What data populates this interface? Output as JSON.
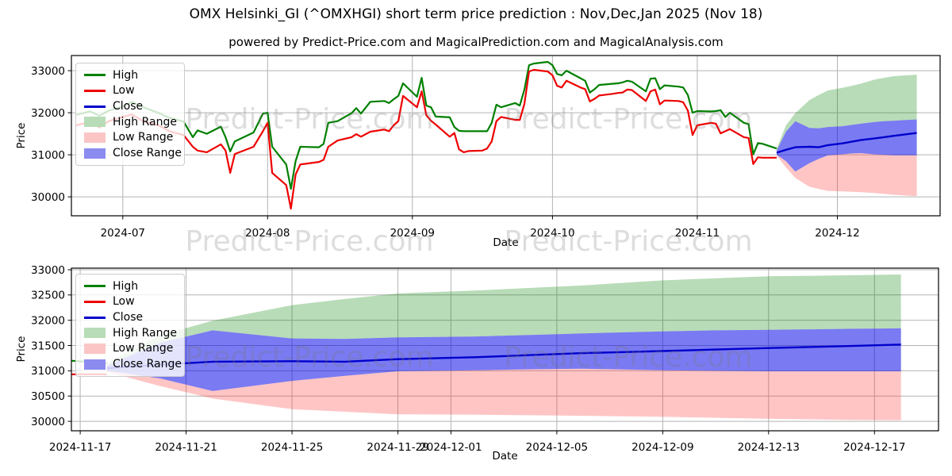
{
  "title": "OMX Helsinki_GI (^OMXHGI) short term price prediction : Nov,Dec,Jan 2025 (Nov 18)",
  "subtitle": "powered by Predict-Price.com and MagicalPrediction.com and MagicalAnalysis.com",
  "watermark": "Predict-Price.com",
  "colors": {
    "high": "#008000",
    "low": "#ee0000",
    "close": "#0000cc",
    "high_range_fill": "rgba(0,128,0,0.28)",
    "low_range_fill": "rgba(255,40,40,0.27)",
    "close_range_fill": "rgba(0,0,230,0.52)",
    "legend_high_range": "#b7dcb7",
    "legend_low_range": "#fbc5c5",
    "legend_close_range": "#8b8bf0",
    "grid": "#b3b3b3",
    "frame": "#000000",
    "watermark_text": "rgba(120,120,120,0.25)"
  },
  "legend": {
    "items": [
      {
        "label": "High",
        "swatch": "line",
        "color": "#008000"
      },
      {
        "label": "Low",
        "swatch": "line",
        "color": "#ee0000"
      },
      {
        "label": "Close",
        "swatch": "line",
        "color": "#0000cc"
      },
      {
        "label": "High Range",
        "swatch": "patch",
        "color": "#b7dcb7"
      },
      {
        "label": "Low Range",
        "swatch": "patch",
        "color": "#fbc5c5"
      },
      {
        "label": "Close Range",
        "swatch": "patch",
        "color": "#8b8bf0"
      }
    ]
  },
  "chart_data": {
    "type": "line",
    "title": "OMX Helsinki_GI (^OMXHGI) short term price prediction : Nov,Dec,Jan 2025 (Nov 18)",
    "series_legend": [
      "High",
      "Low",
      "Close",
      "High Range",
      "Low Range",
      "Close Range"
    ],
    "history": {
      "columns": [
        "date",
        "high",
        "low"
      ],
      "points": [
        [
          "2024-06-21",
          31950,
          31700
        ],
        [
          "2024-06-24",
          32030,
          31780
        ],
        [
          "2024-06-26",
          31930,
          31650
        ],
        [
          "2024-06-28",
          32050,
          31800
        ],
        [
          "2024-07-01",
          32150,
          31900
        ],
        [
          "2024-07-03",
          32260,
          31960
        ],
        [
          "2024-07-05",
          32150,
          31820
        ],
        [
          "2024-07-09",
          31980,
          31680
        ],
        [
          "2024-07-11",
          31880,
          31560
        ],
        [
          "2024-07-14",
          31790,
          31470
        ],
        [
          "2024-07-16",
          31420,
          31190
        ],
        [
          "2024-07-17",
          31580,
          31100
        ],
        [
          "2024-07-19",
          31500,
          31060
        ],
        [
          "2024-07-22",
          31670,
          31250
        ],
        [
          "2024-07-23",
          31420,
          31100
        ],
        [
          "2024-07-24",
          31080,
          30570
        ],
        [
          "2024-07-25",
          31320,
          31020
        ],
        [
          "2024-07-29",
          31530,
          31190
        ],
        [
          "2024-07-31",
          31980,
          31560
        ],
        [
          "2024-08-01",
          32000,
          31760
        ],
        [
          "2024-08-02",
          31190,
          30570
        ],
        [
          "2024-08-05",
          30770,
          30280
        ],
        [
          "2024-08-06",
          30190,
          29720
        ],
        [
          "2024-08-07",
          30850,
          30530
        ],
        [
          "2024-08-08",
          31190,
          30770
        ],
        [
          "2024-08-12",
          31180,
          30830
        ],
        [
          "2024-08-13",
          31260,
          30880
        ],
        [
          "2024-08-14",
          31760,
          31190
        ],
        [
          "2024-08-16",
          31800,
          31340
        ],
        [
          "2024-08-19",
          31990,
          31420
        ],
        [
          "2024-08-20",
          32110,
          31490
        ],
        [
          "2024-08-21",
          31980,
          31430
        ],
        [
          "2024-08-23",
          32260,
          31550
        ],
        [
          "2024-08-26",
          32280,
          31600
        ],
        [
          "2024-08-27",
          32230,
          31560
        ],
        [
          "2024-08-28",
          32320,
          31700
        ],
        [
          "2024-08-29",
          32400,
          31800
        ],
        [
          "2024-08-30",
          32700,
          32400
        ],
        [
          "2024-09-02",
          32380,
          32130
        ],
        [
          "2024-09-03",
          32830,
          32510
        ],
        [
          "2024-09-04",
          32170,
          31940
        ],
        [
          "2024-09-05",
          32130,
          31810
        ],
        [
          "2024-09-06",
          31910,
          31720
        ],
        [
          "2024-09-09",
          31890,
          31430
        ],
        [
          "2024-09-10",
          31660,
          31520
        ],
        [
          "2024-09-11",
          31570,
          31130
        ],
        [
          "2024-09-12",
          31560,
          31060
        ],
        [
          "2024-09-13",
          31560,
          31090
        ],
        [
          "2024-09-16",
          31560,
          31100
        ],
        [
          "2024-09-17",
          31560,
          31150
        ],
        [
          "2024-09-18",
          31760,
          31320
        ],
        [
          "2024-09-19",
          32190,
          31800
        ],
        [
          "2024-09-20",
          32130,
          31900
        ],
        [
          "2024-09-23",
          32230,
          31830
        ],
        [
          "2024-09-24",
          32170,
          31830
        ],
        [
          "2024-09-25",
          32550,
          32210
        ],
        [
          "2024-09-26",
          33130,
          32980
        ],
        [
          "2024-09-27",
          33170,
          33020
        ],
        [
          "2024-09-30",
          33210,
          32980
        ],
        [
          "2024-10-01",
          33130,
          32890
        ],
        [
          "2024-10-02",
          32920,
          32640
        ],
        [
          "2024-10-03",
          32890,
          32600
        ],
        [
          "2024-10-04",
          33000,
          32760
        ],
        [
          "2024-10-07",
          32820,
          32600
        ],
        [
          "2024-10-08",
          32760,
          32560
        ],
        [
          "2024-10-09",
          32480,
          32270
        ],
        [
          "2024-10-10",
          32560,
          32330
        ],
        [
          "2024-10-11",
          32660,
          32410
        ],
        [
          "2024-10-14",
          32690,
          32450
        ],
        [
          "2024-10-15",
          32700,
          32470
        ],
        [
          "2024-10-16",
          32720,
          32480
        ],
        [
          "2024-10-17",
          32760,
          32550
        ],
        [
          "2024-10-18",
          32740,
          32540
        ],
        [
          "2024-10-21",
          32510,
          32280
        ],
        [
          "2024-10-22",
          32810,
          32510
        ],
        [
          "2024-10-23",
          32820,
          32550
        ],
        [
          "2024-10-24",
          32560,
          32200
        ],
        [
          "2024-10-25",
          32650,
          32290
        ],
        [
          "2024-10-28",
          32620,
          32280
        ],
        [
          "2024-10-29",
          32600,
          32250
        ],
        [
          "2024-10-30",
          32420,
          32050
        ],
        [
          "2024-10-31",
          32000,
          31470
        ],
        [
          "2024-11-01",
          32040,
          31700
        ],
        [
          "2024-11-04",
          32030,
          31760
        ],
        [
          "2024-11-05",
          32040,
          31740
        ],
        [
          "2024-11-06",
          32060,
          31510
        ],
        [
          "2024-11-07",
          31900,
          31560
        ],
        [
          "2024-11-08",
          32000,
          31610
        ],
        [
          "2024-11-11",
          31760,
          31420
        ],
        [
          "2024-11-12",
          31730,
          31400
        ],
        [
          "2024-11-13",
          31010,
          30780
        ],
        [
          "2024-11-14",
          31280,
          30940
        ],
        [
          "2024-11-15",
          31260,
          30930
        ],
        [
          "2024-11-18",
          31150,
          30930
        ]
      ]
    },
    "forecast": {
      "dates": [
        "2024-11-18",
        "2024-11-20",
        "2024-11-22",
        "2024-11-25",
        "2024-11-27",
        "2024-11-29",
        "2024-12-02",
        "2024-12-04",
        "2024-12-06",
        "2024-12-09",
        "2024-12-11",
        "2024-12-13",
        "2024-12-16",
        "2024-12-18"
      ],
      "close": [
        31050,
        31120,
        31180,
        31190,
        31180,
        31230,
        31270,
        31310,
        31350,
        31390,
        31420,
        31450,
        31490,
        31520
      ],
      "close_low": [
        31000,
        30850,
        30600,
        30800,
        30900,
        30990,
        31010,
        31030,
        31040,
        31010,
        31000,
        30990,
        30990,
        30990
      ],
      "close_high": [
        31100,
        31550,
        31800,
        31640,
        31630,
        31660,
        31680,
        31710,
        31740,
        31780,
        31800,
        31810,
        31830,
        31840
      ],
      "high_high": [
        31150,
        31700,
        31990,
        32300,
        32420,
        32530,
        32590,
        32640,
        32690,
        32790,
        32830,
        32870,
        32890,
        32905
      ],
      "low_low": [
        30980,
        30700,
        30450,
        30240,
        30190,
        30140,
        30130,
        30120,
        30110,
        30090,
        30070,
        30050,
        30030,
        30020
      ]
    },
    "charts": [
      {
        "name": "full-period-chart",
        "xlabel": "Date",
        "ylabel": "Price",
        "xlim": [
          "2024-06-20",
          "2024-12-23"
        ],
        "ylim": [
          29550,
          33360
        ],
        "x_ticks": [
          "2024-07",
          "2024-08",
          "2024-09",
          "2024-10",
          "2024-11",
          "2024-12"
        ],
        "y_ticks": [
          30000,
          31000,
          32000,
          33000
        ],
        "grid": true,
        "legend_position": "upper left"
      },
      {
        "name": "forecast-zoom-chart",
        "xlabel": "Date",
        "ylabel": "Price",
        "xlim": [
          "2024-11-16T16:00Z",
          "2024-12-19T10:00Z"
        ],
        "ylim": [
          29813,
          33031
        ],
        "x_ticks": [
          "2024-11-17",
          "2024-11-21",
          "2024-11-25",
          "2024-11-29",
          "2024-12-01",
          "2024-12-05",
          "2024-12-09",
          "2024-12-13",
          "2024-12-17"
        ],
        "y_ticks": [
          30000,
          30500,
          31000,
          31500,
          32000,
          32500,
          33000
        ],
        "grid": true,
        "legend_position": "upper left"
      }
    ]
  }
}
